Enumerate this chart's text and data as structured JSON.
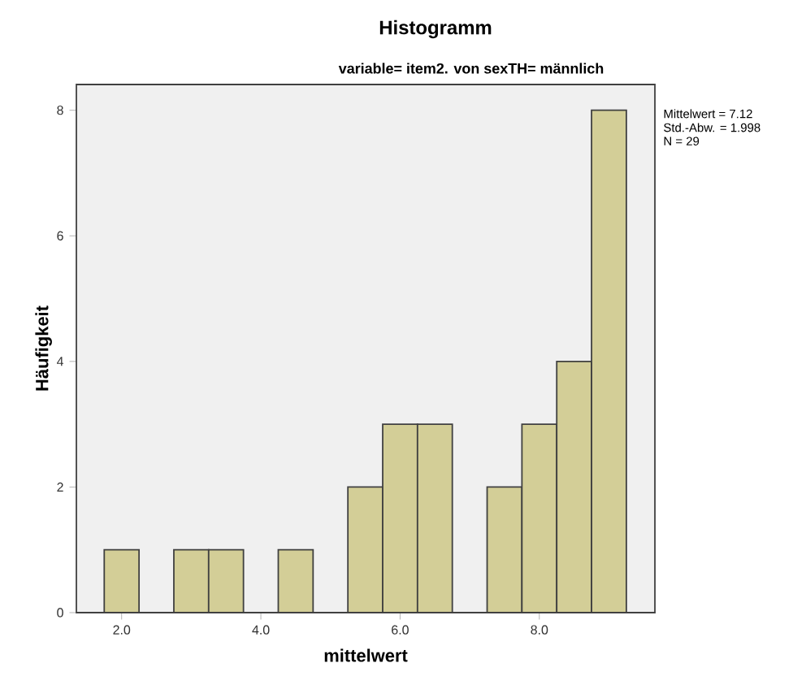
{
  "chart_data": {
    "type": "histogram",
    "title": "Histogramm",
    "subtitle": "variable= item2. von sexTH= männlich",
    "xlabel": "mittelwert",
    "ylabel": "Häufigkeit",
    "bins": [
      1.75,
      2.25,
      2.75,
      3.25,
      3.75,
      4.25,
      4.75,
      5.25,
      5.75,
      6.25,
      6.75,
      7.25,
      7.75,
      8.25,
      8.75,
      9.25
    ],
    "values": [
      1,
      0,
      1,
      1,
      0,
      1,
      0,
      2,
      3,
      3,
      0,
      2,
      3,
      4,
      8
    ],
    "color": "#d3ce97",
    "xlim": [
      1.35,
      9.66
    ],
    "xticks": [
      {
        "value": 2,
        "label": "2.0"
      },
      {
        "value": 4,
        "label": "4.0"
      },
      {
        "value": 6,
        "label": "6.0"
      },
      {
        "value": 8,
        "label": "8.0"
      }
    ],
    "ylim": [
      0,
      8.41
    ],
    "yticks": [
      0,
      2,
      4,
      6,
      8
    ],
    "annotations": [
      "Mittelwert = 7.12",
      "Std.-Abw. = 1.998",
      "N = 29"
    ]
  }
}
